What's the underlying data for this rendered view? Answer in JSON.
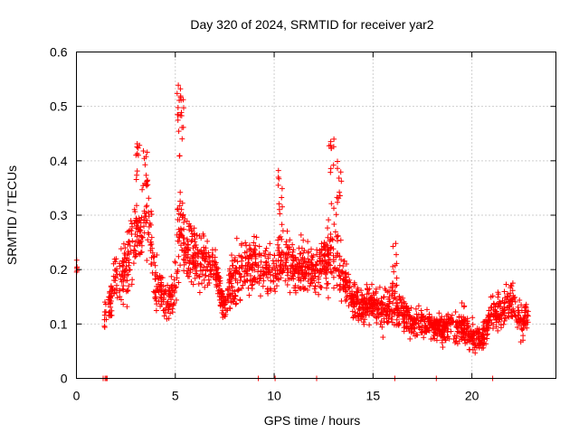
{
  "chart_data": {
    "type": "scatter",
    "title": "Day 320 of 2024, SRMTID for receiver yar2",
    "xlabel": "GPS time / hours",
    "ylabel": "SRMTID / TECUs",
    "xlim": [
      0,
      24.25
    ],
    "ylim": [
      0,
      0.6
    ],
    "x_ticks": [
      "0",
      "5",
      "10",
      "15",
      "20"
    ],
    "y_ticks": [
      "0",
      "0.1",
      "0.2",
      "0.3",
      "0.4",
      "0.5",
      "0.6"
    ],
    "marker": "+",
    "color": "#ff0000",
    "grid": true,
    "legend": "none",
    "envelope_x": [
      0,
      1.5,
      2,
      2.5,
      3,
      3.4,
      3.7,
      4,
      4.5,
      5,
      5.2,
      5.5,
      6,
      6.5,
      7,
      7.5,
      8,
      8.5,
      9,
      9.5,
      10,
      10.5,
      11,
      11.5,
      12,
      12.5,
      13,
      13.5,
      14,
      14.5,
      15,
      15.5,
      16,
      16.5,
      17,
      17.5,
      18,
      18.5,
      19,
      19.5,
      20,
      20.5,
      21,
      21.5,
      22,
      22.5,
      22.8
    ],
    "envelope_mean": [
      0.2,
      0.12,
      0.18,
      0.2,
      0.26,
      0.3,
      0.28,
      0.18,
      0.14,
      0.16,
      0.3,
      0.24,
      0.22,
      0.21,
      0.2,
      0.13,
      0.19,
      0.2,
      0.21,
      0.2,
      0.2,
      0.22,
      0.2,
      0.21,
      0.2,
      0.21,
      0.24,
      0.18,
      0.14,
      0.13,
      0.14,
      0.12,
      0.14,
      0.12,
      0.1,
      0.1,
      0.1,
      0.09,
      0.1,
      0.1,
      0.08,
      0.07,
      0.12,
      0.12,
      0.14,
      0.1,
      0.12
    ],
    "envelope_spread": [
      0.02,
      0.05,
      0.07,
      0.08,
      0.1,
      0.1,
      0.09,
      0.07,
      0.05,
      0.07,
      0.15,
      0.08,
      0.07,
      0.07,
      0.06,
      0.04,
      0.08,
      0.07,
      0.07,
      0.06,
      0.07,
      0.08,
      0.06,
      0.07,
      0.07,
      0.08,
      0.11,
      0.06,
      0.05,
      0.05,
      0.05,
      0.05,
      0.06,
      0.05,
      0.04,
      0.04,
      0.04,
      0.04,
      0.04,
      0.05,
      0.04,
      0.03,
      0.05,
      0.05,
      0.05,
      0.05,
      0.03
    ],
    "peaks": [
      {
        "x": 3.1,
        "y": 0.44
      },
      {
        "x": 3.5,
        "y": 0.42
      },
      {
        "x": 5.2,
        "y": 0.54
      },
      {
        "x": 5.3,
        "y": 0.52
      },
      {
        "x": 10.3,
        "y": 0.39
      },
      {
        "x": 12.9,
        "y": 0.44
      },
      {
        "x": 13.3,
        "y": 0.4
      },
      {
        "x": 16.1,
        "y": 0.26
      }
    ],
    "zero_points_x": [
      1.35,
      1.45,
      1.5,
      1.55,
      9.2,
      10.05,
      12.15,
      16.1,
      18.2,
      21.05
    ]
  }
}
